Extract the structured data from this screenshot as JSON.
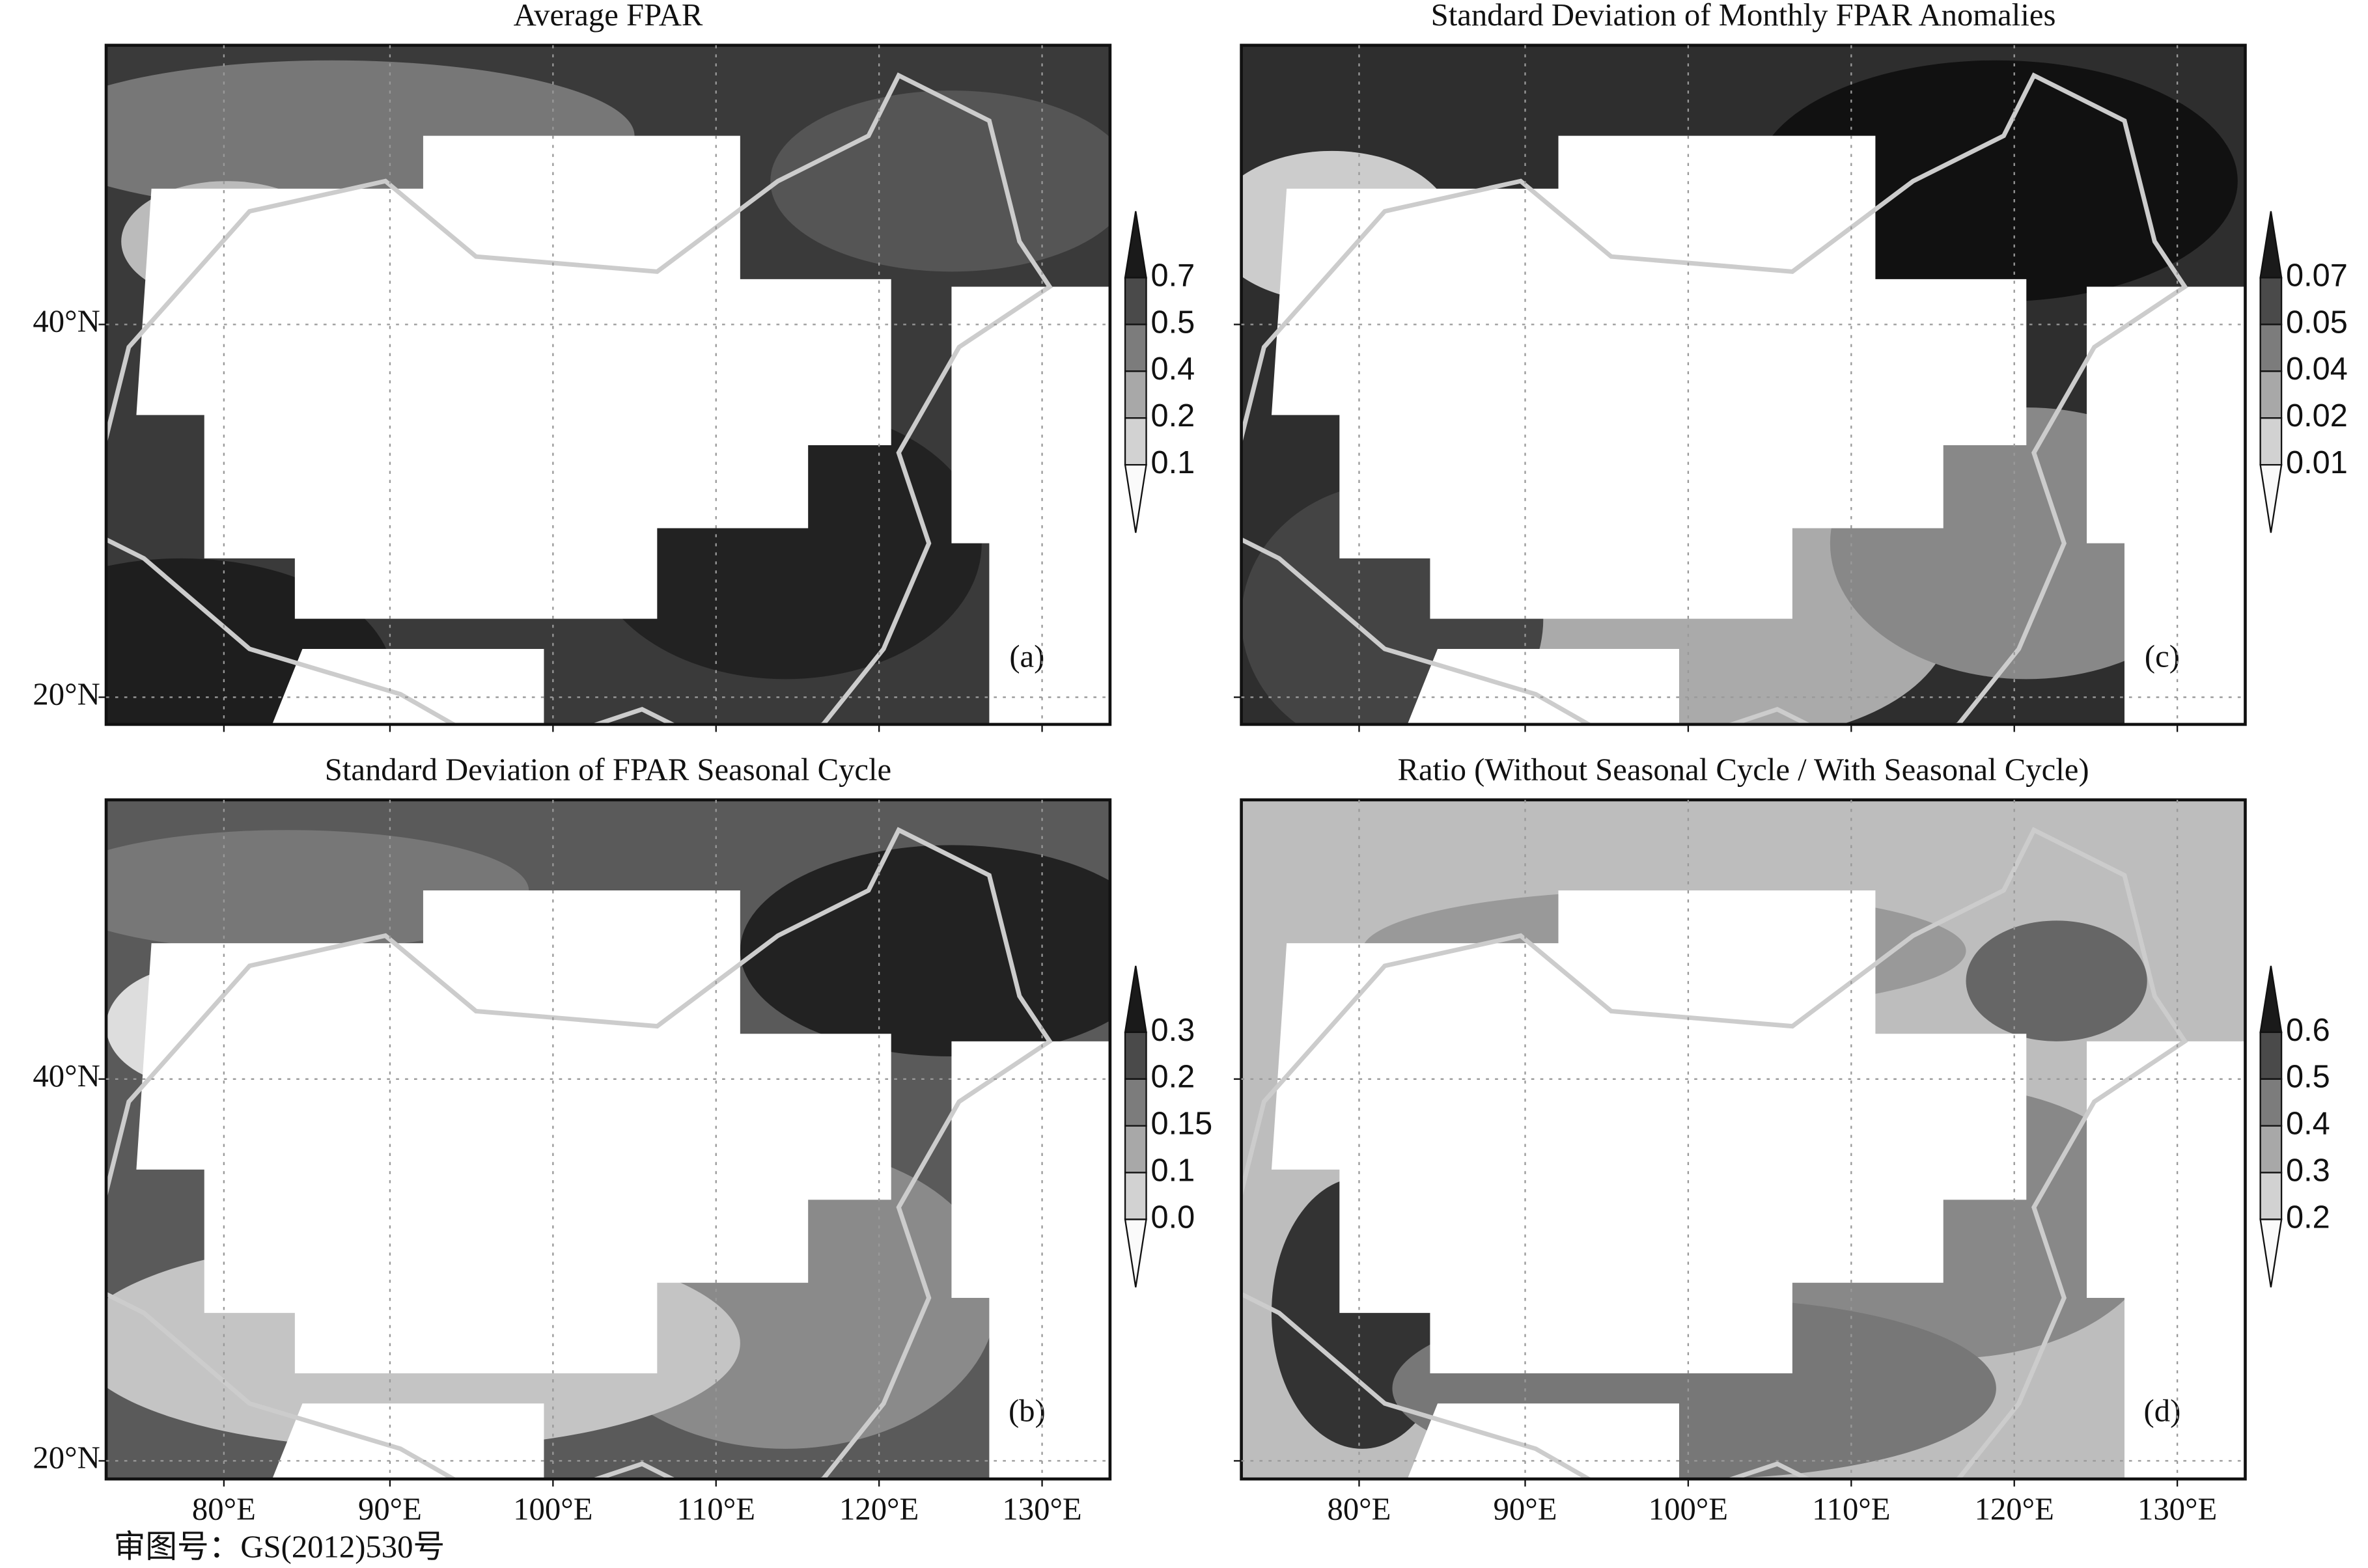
{
  "panels": [
    {
      "title": "Average FPAR",
      "label": "(a)",
      "colorbar_ticks": [
        "0.7",
        "0.5",
        "0.4",
        "0.2",
        "0.1"
      ]
    },
    {
      "title": "Standard Deviation of Monthly FPAR Anomalies",
      "label": "(c)",
      "colorbar_ticks": [
        "0.07",
        "0.05",
        "0.04",
        "0.02",
        "0.01"
      ]
    },
    {
      "title": "Standard Deviation of FPAR Seasonal Cycle",
      "label": "(b)",
      "colorbar_ticks": [
        "0.3",
        "0.2",
        "0.15",
        "0.1",
        "0.0"
      ]
    },
    {
      "title": "Ratio (Without Seasonal Cycle / With Seasonal Cycle)",
      "label": "(d)",
      "colorbar_ticks": [
        "0.6",
        "0.5",
        "0.4",
        "0.3",
        "0.2"
      ]
    }
  ],
  "y_axis_labels": [
    "40°N",
    "20°N"
  ],
  "x_axis_labels": [
    "80°E",
    "90°E",
    "100°E",
    "110°E",
    "120°E",
    "130°E"
  ],
  "footer": "审图号：GS(2012)530号"
}
